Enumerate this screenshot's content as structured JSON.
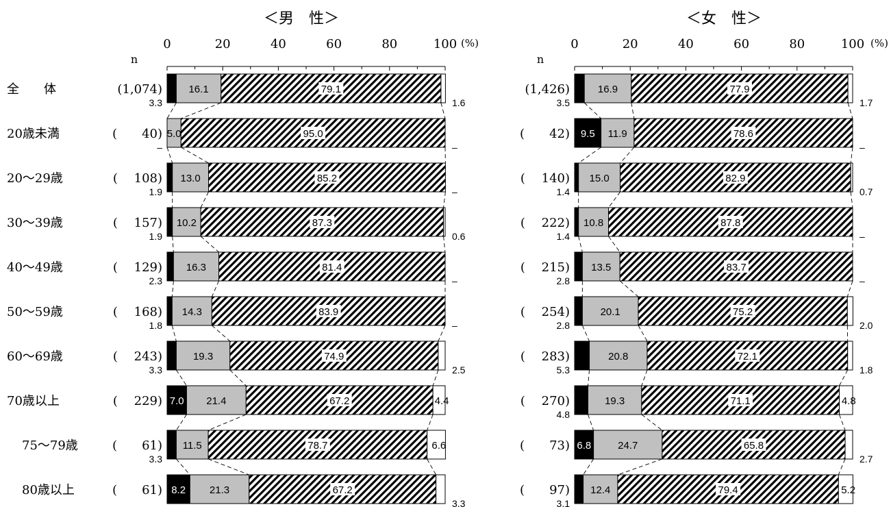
{
  "chart_data": [
    {
      "type": "bar",
      "stacked": true,
      "orientation": "horizontal",
      "title": "＜男　性＞",
      "x_ticks": [
        "0",
        "20",
        "40",
        "60",
        "80",
        "100"
      ],
      "x_unit": "(%)",
      "n_header": "n",
      "xlim": [
        0,
        100
      ],
      "categories": [
        "全　　体",
        "20歳未満",
        "20～29歳",
        "30～39歳",
        "40～49歳",
        "50～59歳",
        "60～69歳",
        "70歳以上",
        "75～79歳",
        "80歳以上"
      ],
      "n_labels": [
        "(1,074)",
        "(　　40)",
        "(　 108)",
        "(　 157)",
        "(　 129)",
        "(　 168)",
        "(　 243)",
        "(　 229)",
        "(　　61)",
        "(　　61)"
      ],
      "series": [
        {
          "color": "#000000",
          "values": [
            3.3,
            0,
            1.9,
            1.9,
            2.3,
            1.8,
            3.3,
            7.0,
            3.3,
            8.2
          ],
          "labels": [
            "3.3",
            "–",
            "1.9",
            "1.9",
            "2.3",
            "1.8",
            "3.3",
            "7.0",
            "3.3",
            "8.2"
          ]
        },
        {
          "color": "#c0c0c0",
          "values": [
            16.1,
            5.0,
            13.0,
            10.2,
            16.3,
            14.3,
            19.3,
            21.4,
            11.5,
            21.3
          ],
          "labels": [
            "16.1",
            "5.0",
            "13.0",
            "10.2",
            "16.3",
            "14.3",
            "19.3",
            "21.4",
            "11.5",
            "21.3"
          ]
        },
        {
          "color": "hatch",
          "values": [
            79.1,
            95.0,
            85.2,
            87.3,
            81.4,
            83.9,
            74.9,
            67.2,
            78.7,
            67.2
          ],
          "labels": [
            "79.1",
            "95.0",
            "85.2",
            "87.3",
            "81.4",
            "83.9",
            "74.9",
            "67.2",
            "78.7",
            "67.2"
          ]
        },
        {
          "color": "#ffffff",
          "values": [
            1.6,
            0,
            0,
            0.6,
            0,
            0,
            2.5,
            4.4,
            6.6,
            3.3
          ],
          "labels": [
            "1.6",
            "–",
            "–",
            "0.6",
            "–",
            "–",
            "2.5",
            "4.4",
            "6.6",
            "3.3"
          ]
        }
      ]
    },
    {
      "type": "bar",
      "stacked": true,
      "orientation": "horizontal",
      "title": "＜女　性＞",
      "x_ticks": [
        "0",
        "20",
        "40",
        "60",
        "80",
        "100"
      ],
      "x_unit": "(%)",
      "n_header": "n",
      "xlim": [
        0,
        100
      ],
      "n_labels": [
        "(1,426)",
        "(　　42)",
        "(　 140)",
        "(　 222)",
        "(　 215)",
        "(　 254)",
        "(　 283)",
        "(　 270)",
        "(　　73)",
        "(　　97)"
      ],
      "series": [
        {
          "color": "#000000",
          "values": [
            3.5,
            9.5,
            1.4,
            1.4,
            2.8,
            2.8,
            5.3,
            4.8,
            6.8,
            3.1
          ],
          "labels": [
            "3.5",
            "9.5",
            "1.4",
            "1.4",
            "2.8",
            "2.8",
            "5.3",
            "4.8",
            "6.8",
            "3.1"
          ]
        },
        {
          "color": "#c0c0c0",
          "values": [
            16.9,
            11.9,
            15.0,
            10.8,
            13.5,
            20.1,
            20.8,
            19.3,
            24.7,
            12.4
          ],
          "labels": [
            "16.9",
            "11.9",
            "15.0",
            "10.8",
            "13.5",
            "20.1",
            "20.8",
            "19.3",
            "24.7",
            "12.4"
          ]
        },
        {
          "color": "hatch",
          "values": [
            77.9,
            78.6,
            82.9,
            87.8,
            83.7,
            75.2,
            72.1,
            71.1,
            65.8,
            79.4
          ],
          "labels": [
            "77.9",
            "78.6",
            "82.9",
            "87.8",
            "83.7",
            "75.2",
            "72.1",
            "71.1",
            "65.8",
            "79.4"
          ]
        },
        {
          "color": "#ffffff",
          "values": [
            1.7,
            0,
            0.7,
            0,
            0,
            2.0,
            1.8,
            4.8,
            2.7,
            5.2
          ],
          "labels": [
            "1.7",
            "–",
            "0.7",
            "–",
            "–",
            "2.0",
            "1.8",
            "4.8",
            "2.7",
            "5.2"
          ]
        }
      ]
    }
  ]
}
